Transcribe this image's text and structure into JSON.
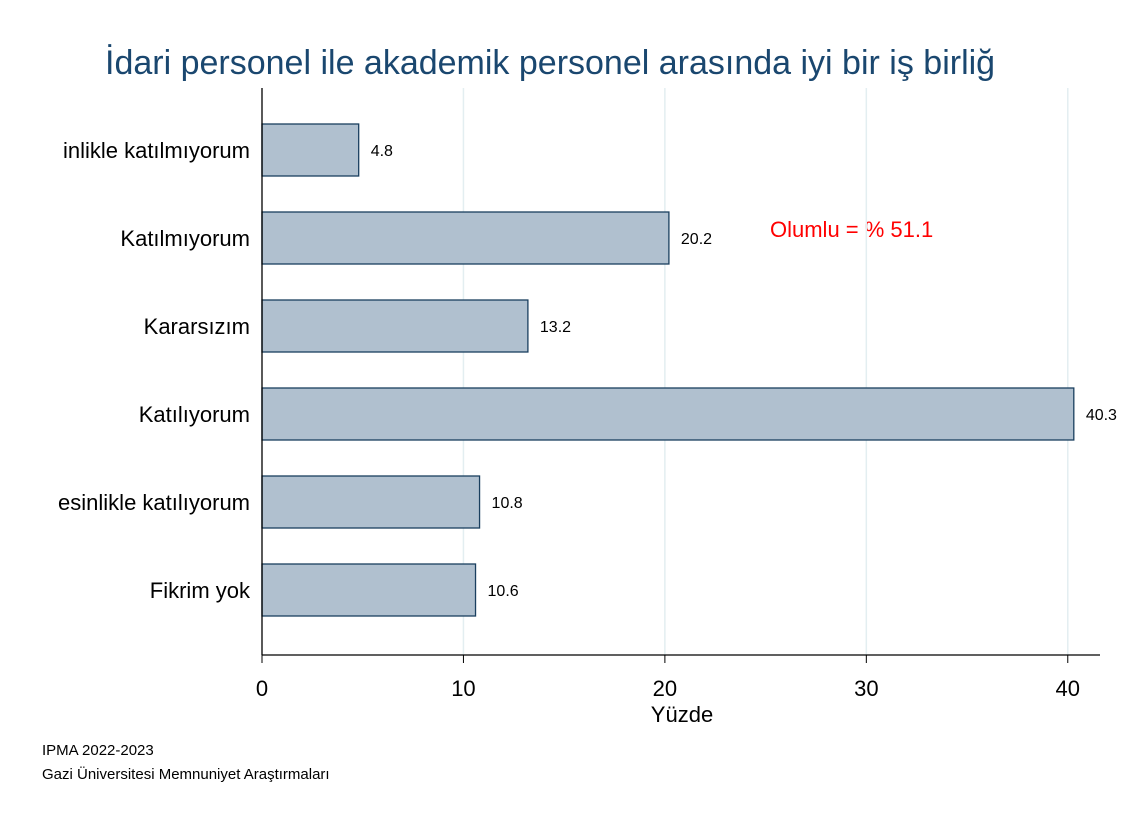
{
  "chart_data": {
    "type": "barh",
    "title": "İdari personel ile akademik personel arasında iyi bir iş birliğ",
    "categories": [
      "inlikle katılmıyorum",
      "Katılmıyorum",
      "Kararsızım",
      "Katılıyorum",
      "esinlikle katılıyorum",
      "Fikrim yok"
    ],
    "values": [
      4.8,
      20.2,
      13.2,
      40.3,
      10.8,
      10.6
    ],
    "color": "#b0c0cf",
    "xlabel": "Yüzde",
    "xlim": [
      0,
      41.6
    ],
    "xticks": [
      0,
      10,
      20,
      30,
      40
    ],
    "grid": true,
    "annotation": "Olumlu = % 51.1",
    "notes": [
      "IPMA 2022-2023",
      "Gazi Üniversitesi Memnuniyet Araştırmaları"
    ]
  }
}
